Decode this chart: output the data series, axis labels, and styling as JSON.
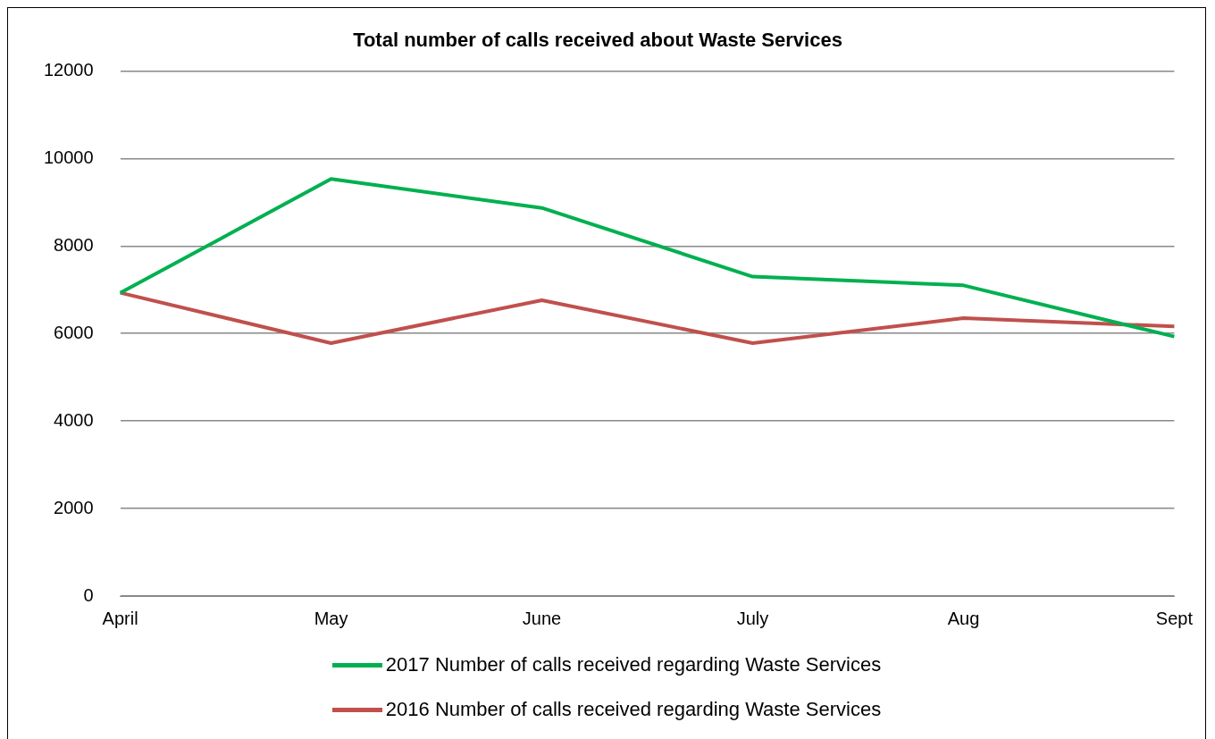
{
  "chart_data": {
    "type": "line",
    "title": "Total number of calls received about Waste Services",
    "categories": [
      "April",
      "May",
      "June",
      "July",
      "Aug",
      "Sept"
    ],
    "series": [
      {
        "name": "2017 Number of calls received regarding Waste Services",
        "color": "#00b050",
        "values": [
          6930,
          9530,
          8870,
          7300,
          7100,
          5930
        ]
      },
      {
        "name": "2016 Number of calls received regarding Waste Services",
        "color": "#c0504d",
        "values": [
          6930,
          5780,
          6760,
          5780,
          6350,
          6160
        ]
      }
    ],
    "ylim": [
      0,
      12000
    ],
    "yticks": [
      0,
      2000,
      4000,
      6000,
      8000,
      10000,
      12000
    ],
    "grid": "y",
    "legend": "bottom",
    "marker": "none",
    "line_style": "solid"
  }
}
